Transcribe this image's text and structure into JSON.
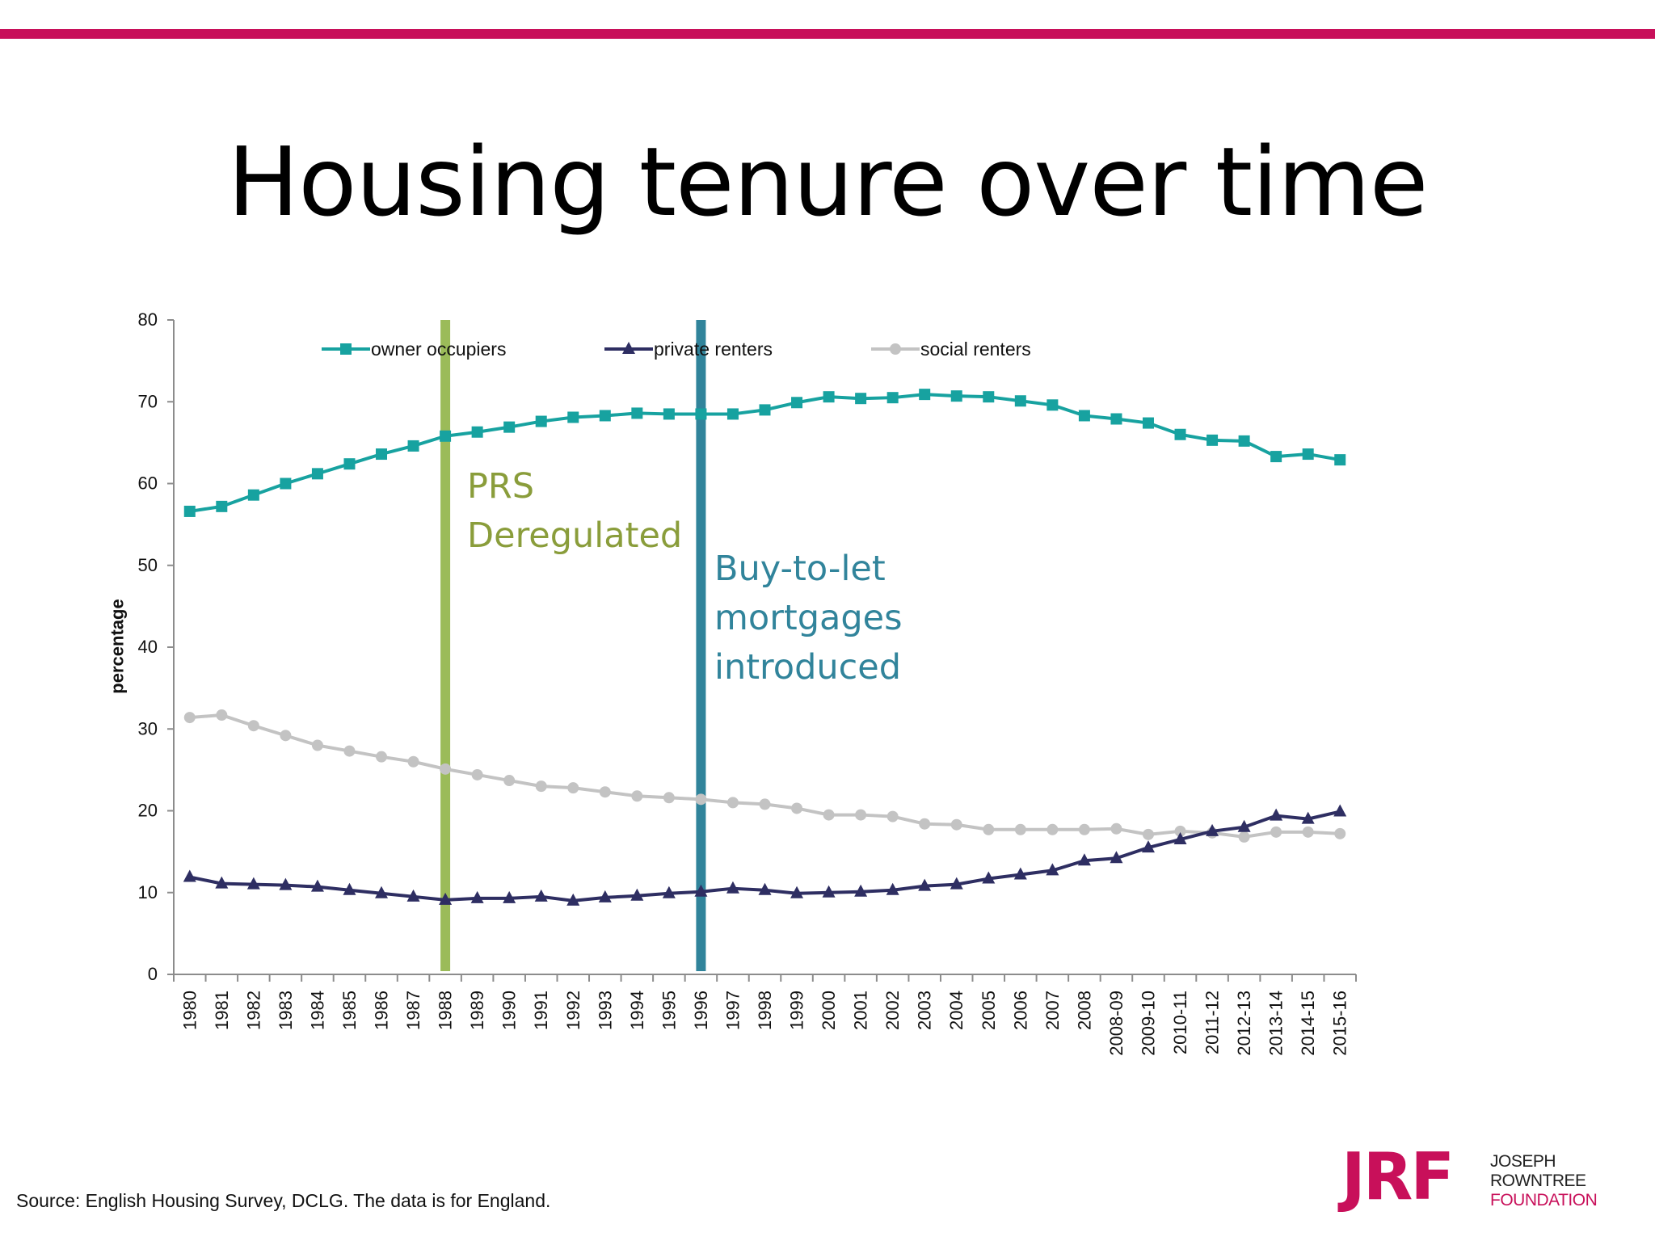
{
  "slide": {
    "title": "Housing tenure over time",
    "source": "Source: English Housing Survey, DCLG. The data is for England.",
    "accent_color": "#c8105a"
  },
  "logo": {
    "mark": "JRF",
    "line1": "JOSEPH",
    "line2": "ROWNTREE",
    "line3": "FOUNDATION"
  },
  "chart_data": {
    "type": "line",
    "title": "",
    "xlabel": "",
    "ylabel": "percentage",
    "ylim": [
      0,
      80
    ],
    "yticks": [
      0,
      10,
      20,
      30,
      40,
      50,
      60,
      70,
      80
    ],
    "grid": false,
    "legend_position": "top",
    "categories": [
      "1980",
      "1981",
      "1982",
      "1983",
      "1984",
      "1985",
      "1986",
      "1987",
      "1988",
      "1989",
      "1990",
      "1991",
      "1992",
      "1993",
      "1994",
      "1995",
      "1996",
      "1997",
      "1998",
      "1999",
      "2000",
      "2001",
      "2002",
      "2003",
      "2004",
      "2005",
      "2006",
      "2007",
      "2008",
      "2008-09",
      "2009-10",
      "2010-11",
      "2011-12",
      "2012-13",
      "2013-14",
      "2014-15",
      "2015-16"
    ],
    "series": [
      {
        "name": "owner occupiers",
        "color": "#17a2a0",
        "marker": "square",
        "values": [
          56.6,
          57.2,
          58.6,
          60.0,
          61.2,
          62.4,
          63.6,
          64.6,
          65.8,
          66.3,
          66.9,
          67.6,
          68.1,
          68.3,
          68.6,
          68.5,
          68.5,
          68.5,
          69.0,
          69.9,
          70.6,
          70.4,
          70.5,
          70.9,
          70.7,
          70.6,
          70.1,
          69.6,
          68.3,
          67.9,
          67.4,
          66.0,
          65.3,
          65.2,
          63.3,
          63.6,
          62.9
        ]
      },
      {
        "name": "private renters",
        "color": "#2e2e62",
        "marker": "triangle",
        "values": [
          11.9,
          11.1,
          11.0,
          10.9,
          10.7,
          10.3,
          9.9,
          9.5,
          9.1,
          9.3,
          9.3,
          9.5,
          9.0,
          9.4,
          9.6,
          9.9,
          10.1,
          10.5,
          10.3,
          9.9,
          10.0,
          10.1,
          10.3,
          10.8,
          11.0,
          11.7,
          12.2,
          12.7,
          13.9,
          14.2,
          15.5,
          16.5,
          17.5,
          18.0,
          19.4,
          19.0,
          19.9
        ]
      },
      {
        "name": "social renters",
        "color": "#c3c3c3",
        "marker": "circle",
        "values": [
          31.4,
          31.7,
          30.4,
          29.2,
          28.0,
          27.3,
          26.6,
          26.0,
          25.1,
          24.4,
          23.7,
          23.0,
          22.8,
          22.3,
          21.8,
          21.6,
          21.4,
          21.0,
          20.8,
          20.3,
          19.5,
          19.5,
          19.3,
          18.4,
          18.3,
          17.7,
          17.7,
          17.7,
          17.7,
          17.8,
          17.1,
          17.5,
          17.3,
          16.8,
          17.4,
          17.4,
          17.2
        ]
      }
    ],
    "annotations": [
      {
        "x": "1988",
        "text_lines": [
          "PRS",
          "Deregulated"
        ],
        "color": "#8a9d3b",
        "line_color": "#9bbb59"
      },
      {
        "x": "1996",
        "text_lines": [
          "Buy-to-let",
          "mortgages",
          "introduced"
        ],
        "color": "#31849b",
        "line_color": "#31849b"
      }
    ]
  }
}
